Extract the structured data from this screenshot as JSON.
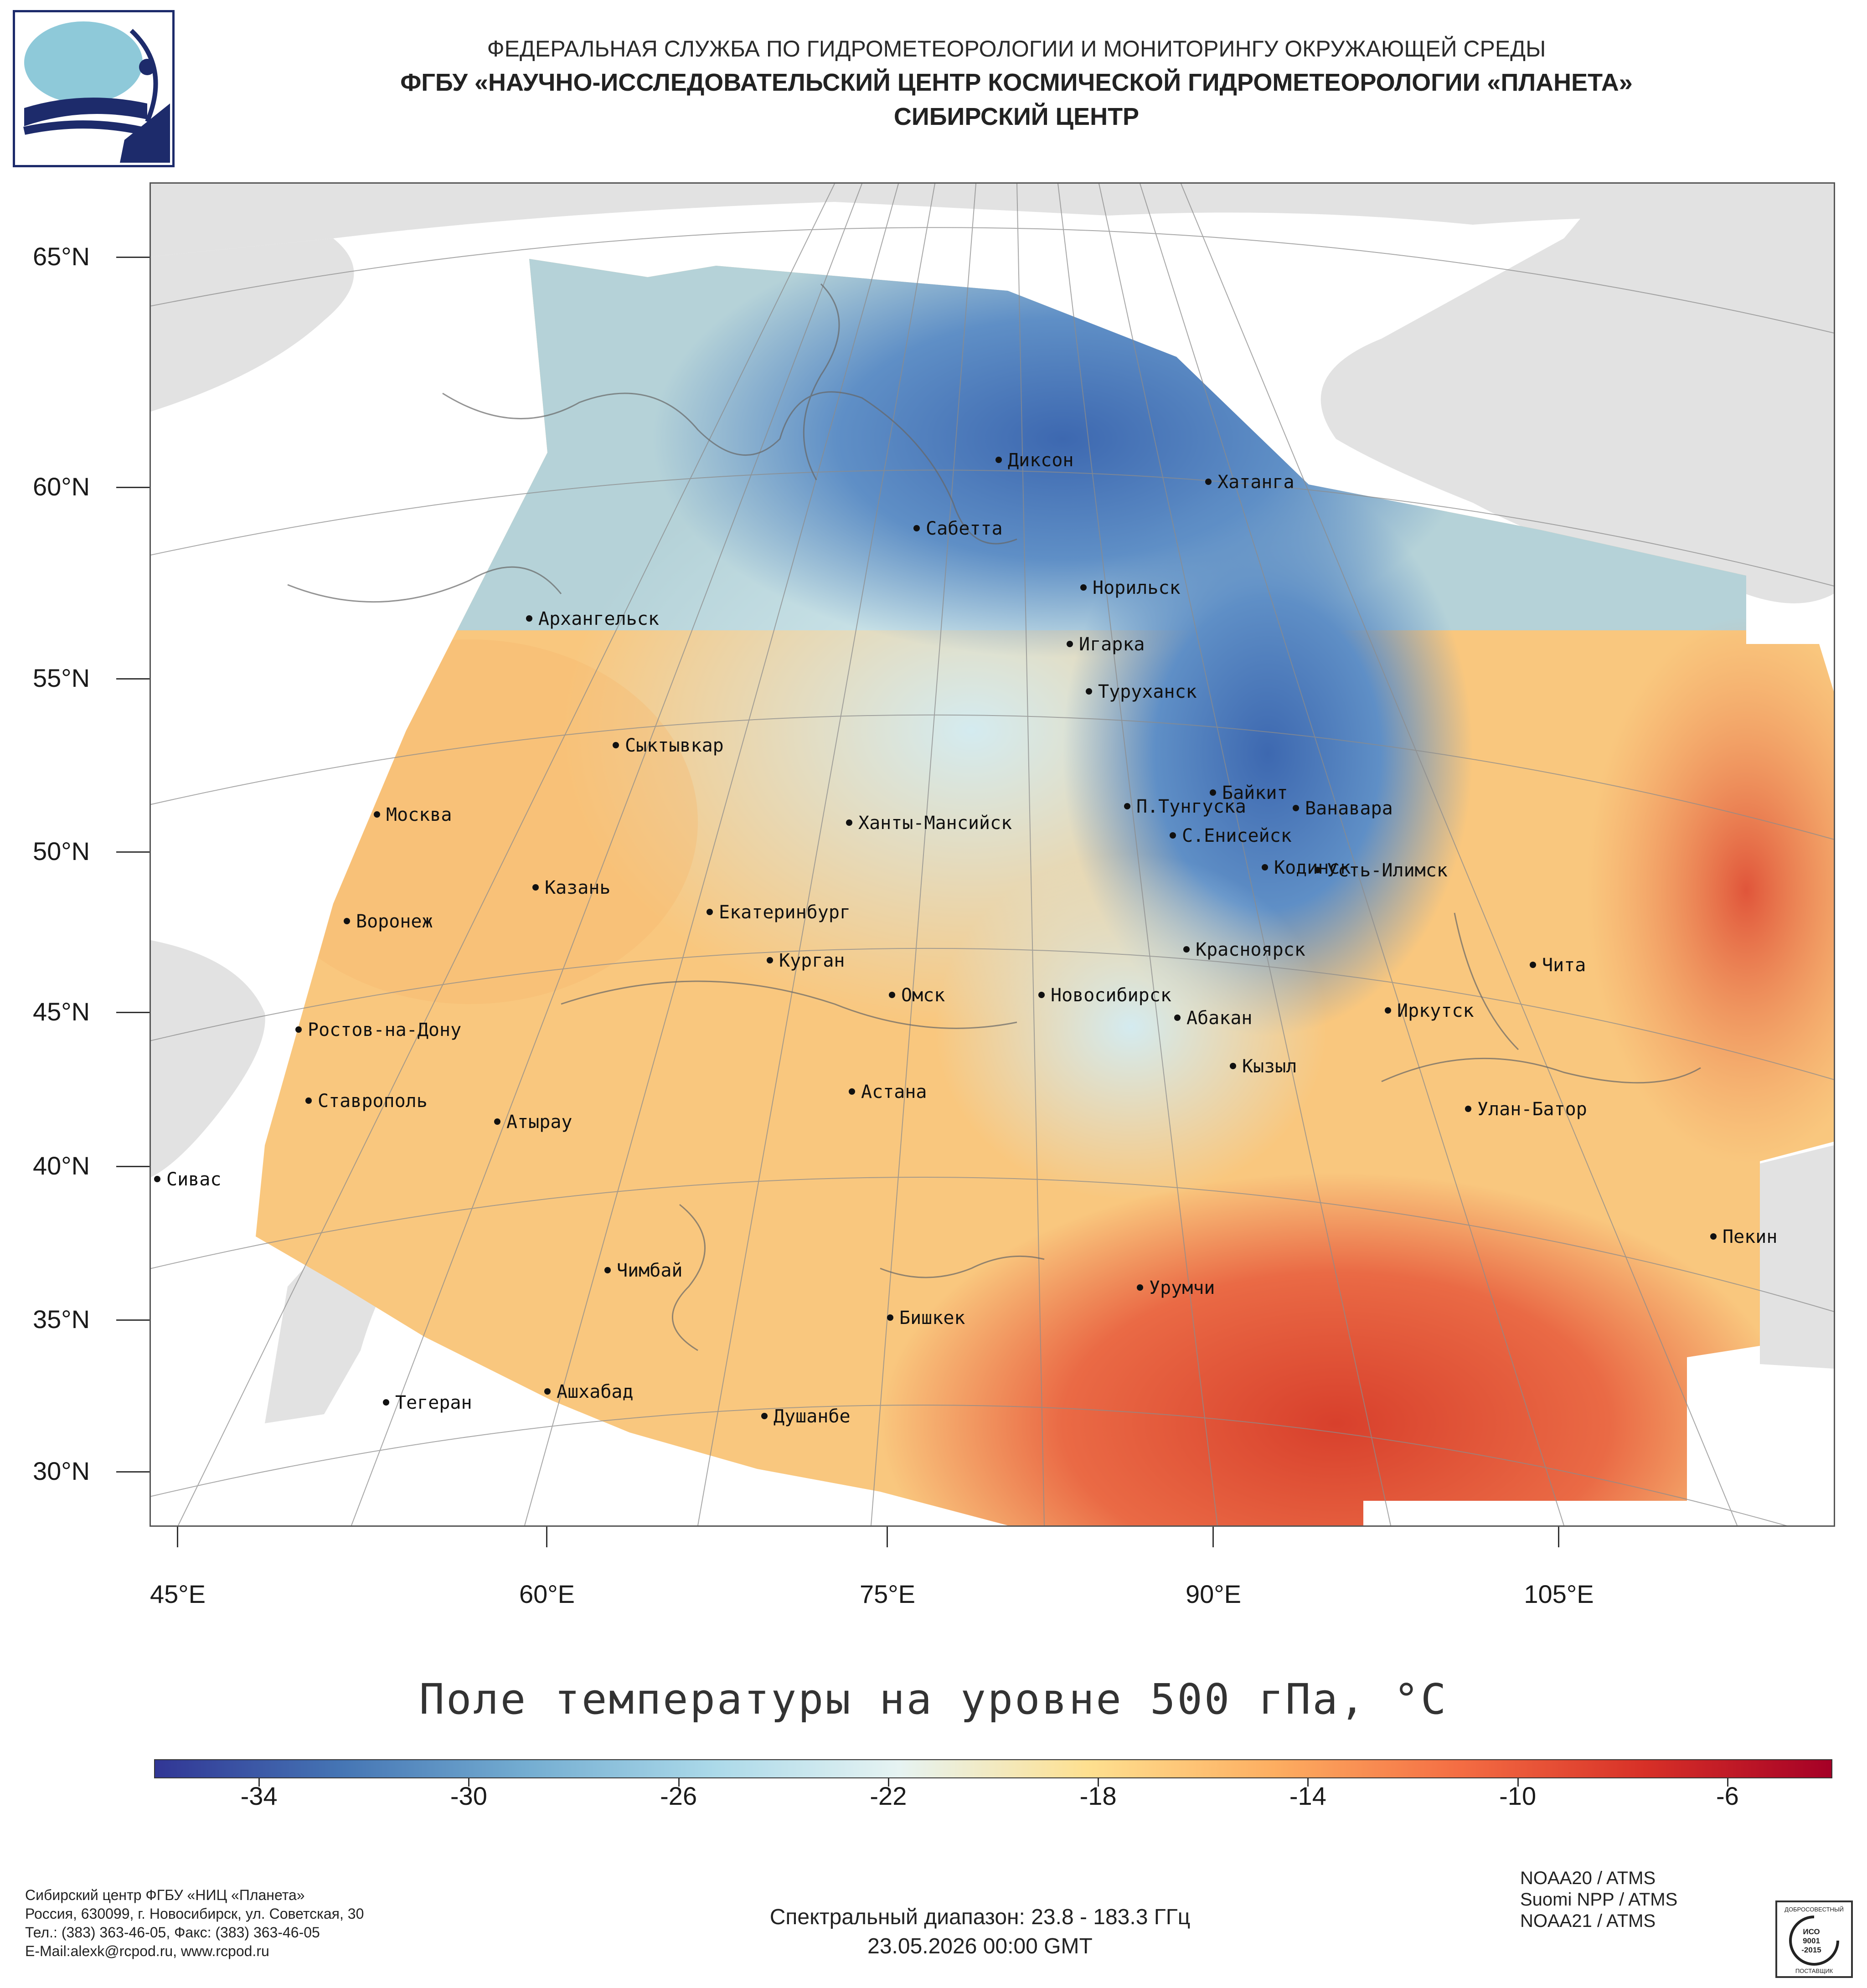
{
  "header": {
    "line1": "ФЕДЕРАЛЬНАЯ СЛУЖБА ПО ГИДРОМЕТЕОРОЛОГИИ И МОНИТОРИНГУ ОКРУЖАЮЩЕЙ СРЕДЫ",
    "line2": "ФГБУ «НАУЧНО-ИССЛЕДОВАТЕЛЬСКИЙ ЦЕНТР КОСМИЧЕСКОЙ ГИДРОМЕТЕОРОЛОГИИ «ПЛАНЕТА»",
    "line3": "СИБИРСКИЙ ЦЕНТР"
  },
  "map": {
    "lat_labels": [
      "65°N",
      "60°N",
      "55°N",
      "50°N",
      "45°N",
      "40°N",
      "35°N",
      "30°N"
    ],
    "lon_labels": [
      "45°E",
      "60°E",
      "75°E",
      "90°E",
      "105°E"
    ],
    "cities": [
      {
        "name": "Диксон"
      },
      {
        "name": "Хатанга"
      },
      {
        "name": "Сабетта"
      },
      {
        "name": "Норильск"
      },
      {
        "name": "Архангельск"
      },
      {
        "name": "Игарка"
      },
      {
        "name": "Туруханск"
      },
      {
        "name": "Сыктывкар"
      },
      {
        "name": "Байкит"
      },
      {
        "name": "Москва"
      },
      {
        "name": "Ханты-Мансийск"
      },
      {
        "name": "П.Тунгуска"
      },
      {
        "name": "Ванавара"
      },
      {
        "name": "С.Енисейск"
      },
      {
        "name": "Кодинск"
      },
      {
        "name": "Усть-Илимск"
      },
      {
        "name": "Казань"
      },
      {
        "name": "Екатеринбург"
      },
      {
        "name": "Воронеж"
      },
      {
        "name": "Красноярск"
      },
      {
        "name": "Курган"
      },
      {
        "name": "Чита"
      },
      {
        "name": "Омск"
      },
      {
        "name": "Новосибирск"
      },
      {
        "name": "Иркутск"
      },
      {
        "name": "Абакан"
      },
      {
        "name": "Ростов-на-Дону"
      },
      {
        "name": "Кызыл"
      },
      {
        "name": "Астана"
      },
      {
        "name": "Ставрополь"
      },
      {
        "name": "Улан-Батор"
      },
      {
        "name": "Атырау"
      },
      {
        "name": "Сивас"
      },
      {
        "name": "Пекин"
      },
      {
        "name": "Чимбай"
      },
      {
        "name": "Урумчи"
      },
      {
        "name": "Бишкек"
      },
      {
        "name": "Ашхабад"
      },
      {
        "name": "Тегеран"
      },
      {
        "name": "Душанбе"
      }
    ]
  },
  "title": "Поле температуры на уровне 500 гПа, °C",
  "colorbar": {
    "min": -36,
    "max": -4,
    "labels": [
      "-34",
      "-30",
      "-26",
      "-22",
      "-18",
      "-14",
      "-10",
      "-6"
    ],
    "colors": [
      "#313695",
      "#4575b4",
      "#74add1",
      "#abd9e9",
      "#e6f3f2",
      "#fee090",
      "#fdae61",
      "#f46d43",
      "#d73027",
      "#a50026"
    ]
  },
  "footer": {
    "left": [
      "Сибирский центр ФГБУ «НИЦ «Планета»",
      "Россия, 630099, г. Новосибирск, ул. Советская, 30",
      "Тел.: (383) 363-46-05, Факс: (383) 363-46-05",
      "E-Mail:alexk@rcpod.ru, www.rcpod.ru"
    ],
    "spectral": "Спектральный диапазон: 23.8 - 183.3 ГГц",
    "datetime": "23.05.2026 00:00 GMT",
    "sensors": [
      "NOAA20 / ATMS",
      "Suomi NPP / ATMS",
      "NOAA21 / ATMS"
    ],
    "iso": {
      "top": "ДОБРОСОВЕСТНЫЙ",
      "mid1": "ИСО",
      "mid2": "9001",
      "mid3": "-2015",
      "bottom": "ПОСТАВЩИК"
    }
  }
}
